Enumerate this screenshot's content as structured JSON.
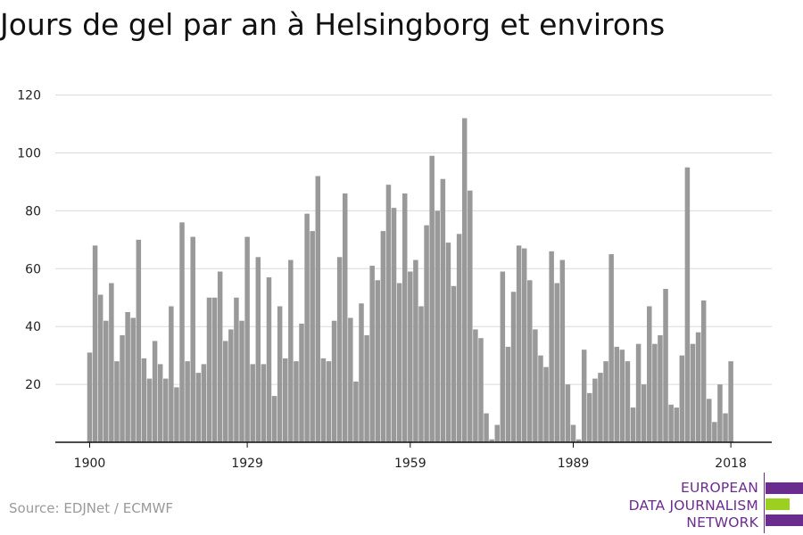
{
  "title": "Jours de gel par an à Helsingborg et environs",
  "source": "Source: EDJNet / ECMWF",
  "logo": {
    "lines": [
      "EUROPEAN",
      "DATA JOURNALISM",
      "NETWORK"
    ],
    "colors": [
      "#6a2d8f",
      "#9bd11e",
      "#6a2d8f"
    ]
  },
  "chart_data": {
    "type": "bar",
    "title": "Jours de gel par an à Helsingborg et environs",
    "xlabel": "",
    "ylabel": "",
    "start_year": 1900,
    "x_ticks": [
      1900,
      1929,
      1959,
      1989,
      2018
    ],
    "y_ticks": [
      20,
      40,
      60,
      80,
      100,
      120
    ],
    "ylim": [
      0,
      120
    ],
    "grid": true,
    "bar_color": "#999999",
    "x": [
      1900,
      1901,
      1902,
      1903,
      1904,
      1905,
      1906,
      1907,
      1908,
      1909,
      1910,
      1911,
      1912,
      1913,
      1914,
      1915,
      1916,
      1917,
      1918,
      1919,
      1920,
      1921,
      1922,
      1923,
      1924,
      1925,
      1926,
      1927,
      1928,
      1929,
      1930,
      1931,
      1932,
      1933,
      1934,
      1935,
      1936,
      1937,
      1938,
      1939,
      1940,
      1941,
      1942,
      1943,
      1944,
      1945,
      1946,
      1947,
      1948,
      1949,
      1950,
      1951,
      1952,
      1953,
      1954,
      1955,
      1956,
      1957,
      1958,
      1959,
      1960,
      1961,
      1962,
      1963,
      1964,
      1965,
      1966,
      1967,
      1968,
      1969,
      1970,
      1971,
      1972,
      1973,
      1974,
      1975,
      1976,
      1977,
      1978,
      1979,
      1980,
      1981,
      1982,
      1983,
      1984,
      1985,
      1986,
      1987,
      1988,
      1989,
      1990,
      1991,
      1992,
      1993,
      1994,
      1995,
      1996,
      1997,
      1998,
      1999,
      2000,
      2001,
      2002,
      2003,
      2004,
      2005,
      2006,
      2007,
      2008,
      2009,
      2010,
      2011,
      2012,
      2013,
      2014,
      2015,
      2016,
      2017,
      2018
    ],
    "values": [
      31,
      68,
      51,
      42,
      55,
      28,
      37,
      45,
      43,
      70,
      29,
      22,
      35,
      27,
      22,
      47,
      19,
      76,
      28,
      71,
      24,
      27,
      50,
      50,
      59,
      35,
      39,
      50,
      42,
      71,
      27,
      64,
      27,
      57,
      16,
      47,
      29,
      63,
      28,
      41,
      79,
      73,
      92,
      29,
      28,
      42,
      64,
      86,
      43,
      21,
      48,
      37,
      61,
      56,
      73,
      89,
      81,
      55,
      86,
      59,
      63,
      47,
      75,
      99,
      80,
      91,
      69,
      54,
      72,
      112,
      87,
      39,
      36,
      10,
      1,
      6,
      59,
      33,
      52,
      68,
      67,
      56,
      39,
      30,
      26,
      66,
      55,
      63,
      20,
      6,
      1,
      32,
      17,
      22,
      24,
      28,
      65,
      33,
      32,
      28,
      12,
      34,
      20,
      47,
      34,
      37,
      53,
      13,
      12,
      30,
      95,
      34,
      38,
      49,
      15,
      7,
      20,
      10,
      28
    ]
  }
}
